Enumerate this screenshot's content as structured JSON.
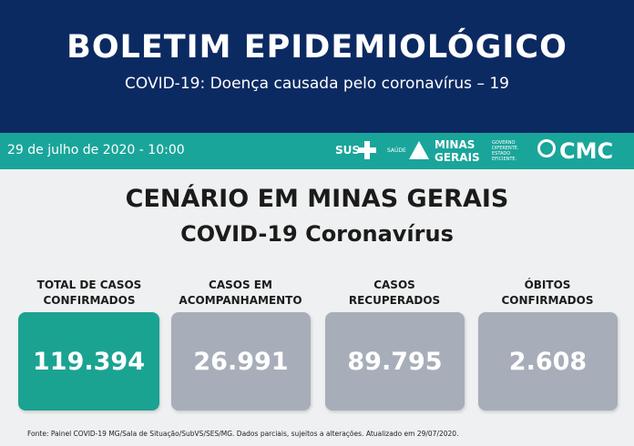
{
  "header": {
    "title": "BOLETIM EPIDEMIOLÓGICO",
    "subtitle": "COVID-19: Doença causada pelo coronavírus – 19"
  },
  "info_bar": {
    "date": "29 de julho de 2020 - 10:00",
    "logos": [
      "SUS",
      "SAÚDE",
      "MINAS",
      "GERAIS",
      "GOVERNO DIFERENTE. ESTADO EFICIENTE.",
      "CMC"
    ]
  },
  "section": {
    "title": "CENÁRIO EM MINAS GERAIS",
    "subtitle": "COVID-19 Coronavírus"
  },
  "cards": [
    {
      "label": [
        "TOTAL DE CASOS",
        "CONFIRMADOS"
      ],
      "value": "119.394"
    },
    {
      "label": [
        "CASOS EM",
        "ACOMPANHAMENTO"
      ],
      "value": "26.991"
    },
    {
      "label": [
        "CASOS",
        "RECUPERADOS"
      ],
      "value": "89.795"
    },
    {
      "label": [
        "ÓBITOS",
        "CONFIRMADOS"
      ],
      "value": "2.608"
    }
  ],
  "footer": {
    "source": "Fonte: Painel COVID-19 MG/Sala de Situação/SubVS/SES/MG. Dados parciais, sujeitos a alterações. Atualizado em 29/07/2020."
  }
}
